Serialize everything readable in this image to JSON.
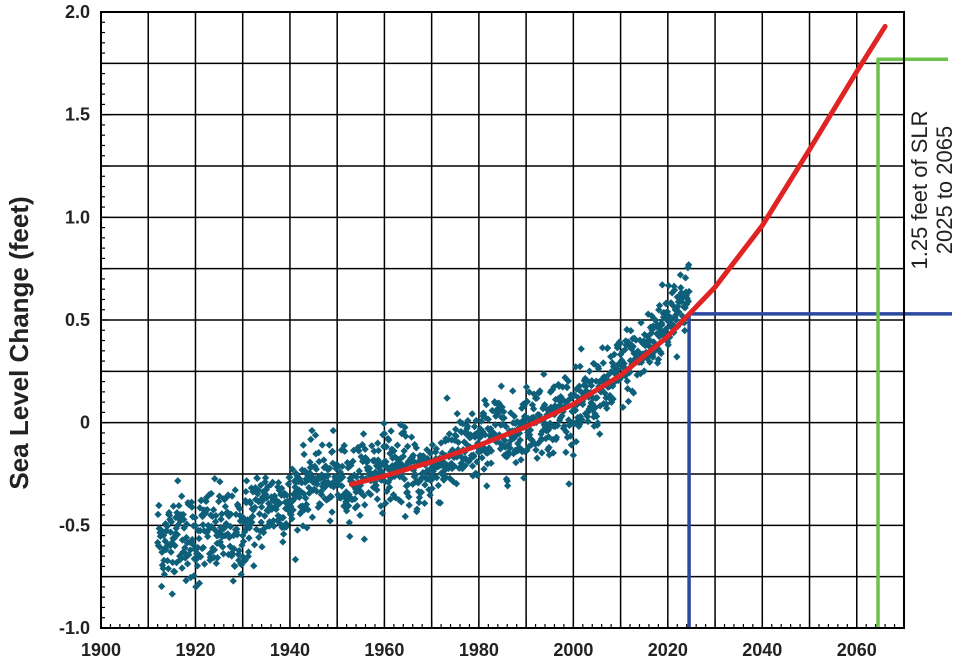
{
  "chart_data": {
    "type": "scatter",
    "title": "",
    "xlabel": "",
    "ylabel": "Sea Level Change (feet)",
    "xlim": [
      1900,
      2070
    ],
    "ylim": [
      -1.0,
      2.0
    ],
    "x_ticks": [
      "1900",
      "1920",
      "1940",
      "1960",
      "1980",
      "2000",
      "2020",
      "2040",
      "2060"
    ],
    "y_ticks": [
      "-1.0",
      "-0.5",
      "0",
      "0.5",
      "1.0",
      "1.5",
      "2.0"
    ],
    "grid": true,
    "legend": "none",
    "colors": {
      "scatter": "#0e5f7a",
      "fit_curve": "#e02424",
      "reference_2025": "#2a4aa0",
      "reference_2065": "#6cc24a",
      "grid": "#000000"
    },
    "series": [
      {
        "kind": "scatter",
        "note_values": "monthly scatter; representative trend samples",
        "points": [
          [
            1912,
            -0.55
          ],
          [
            1914,
            -0.6
          ],
          [
            1916,
            -0.5
          ],
          [
            1918,
            -0.55
          ],
          [
            1920,
            -0.58
          ],
          [
            1922,
            -0.52
          ],
          [
            1924,
            -0.55
          ],
          [
            1926,
            -0.5
          ],
          [
            1928,
            -0.58
          ],
          [
            1930,
            -0.52
          ],
          [
            1932,
            -0.45
          ],
          [
            1934,
            -0.42
          ],
          [
            1936,
            -0.4
          ],
          [
            1938,
            -0.38
          ],
          [
            1940,
            -0.4
          ],
          [
            1942,
            -0.32
          ],
          [
            1944,
            -0.3
          ],
          [
            1946,
            -0.25
          ],
          [
            1948,
            -0.3
          ],
          [
            1950,
            -0.28
          ],
          [
            1952,
            -0.3
          ],
          [
            1954,
            -0.28
          ],
          [
            1956,
            -0.26
          ],
          [
            1958,
            -0.22
          ],
          [
            1960,
            -0.2
          ],
          [
            1962,
            -0.22
          ],
          [
            1964,
            -0.22
          ],
          [
            1966,
            -0.25
          ],
          [
            1968,
            -0.26
          ],
          [
            1970,
            -0.22
          ],
          [
            1972,
            -0.2
          ],
          [
            1974,
            -0.16
          ],
          [
            1976,
            -0.14
          ],
          [
            1978,
            -0.13
          ],
          [
            1980,
            -0.12
          ],
          [
            1982,
            -0.06
          ],
          [
            1984,
            -0.02
          ],
          [
            1986,
            -0.08
          ],
          [
            1988,
            -0.05
          ],
          [
            1990,
            0.0
          ],
          [
            1992,
            0.03
          ],
          [
            1994,
            0.02
          ],
          [
            1996,
            0.04
          ],
          [
            1998,
            0.08
          ],
          [
            2000,
            0.05
          ],
          [
            2002,
            0.08
          ],
          [
            2004,
            0.13
          ],
          [
            2006,
            0.15
          ],
          [
            2008,
            0.2
          ],
          [
            2010,
            0.25
          ],
          [
            2012,
            0.3
          ],
          [
            2014,
            0.32
          ],
          [
            2016,
            0.38
          ],
          [
            2018,
            0.45
          ],
          [
            2020,
            0.52
          ],
          [
            2022,
            0.58
          ],
          [
            2024,
            0.6
          ]
        ]
      },
      {
        "kind": "fit_curve",
        "points": [
          [
            1953,
            -0.3
          ],
          [
            1960,
            -0.26
          ],
          [
            1970,
            -0.19
          ],
          [
            1980,
            -0.11
          ],
          [
            1990,
            -0.02
          ],
          [
            2000,
            0.09
          ],
          [
            2010,
            0.23
          ],
          [
            2020,
            0.42
          ],
          [
            2025,
            0.54
          ],
          [
            2030,
            0.66
          ],
          [
            2040,
            0.96
          ],
          [
            2050,
            1.33
          ],
          [
            2060,
            1.71
          ],
          [
            2066,
            1.93
          ]
        ]
      }
    ],
    "reference_lines": [
      {
        "color_key": "reference_2025",
        "x": 2024.5,
        "y": 0.53,
        "x_end": 2070
      },
      {
        "color_key": "reference_2065",
        "x": 2064.5,
        "y": 1.77,
        "x_end": 2070
      }
    ],
    "annotation": {
      "line1": "1.25 feet of SLR",
      "line2": "2025 to 2065"
    }
  }
}
